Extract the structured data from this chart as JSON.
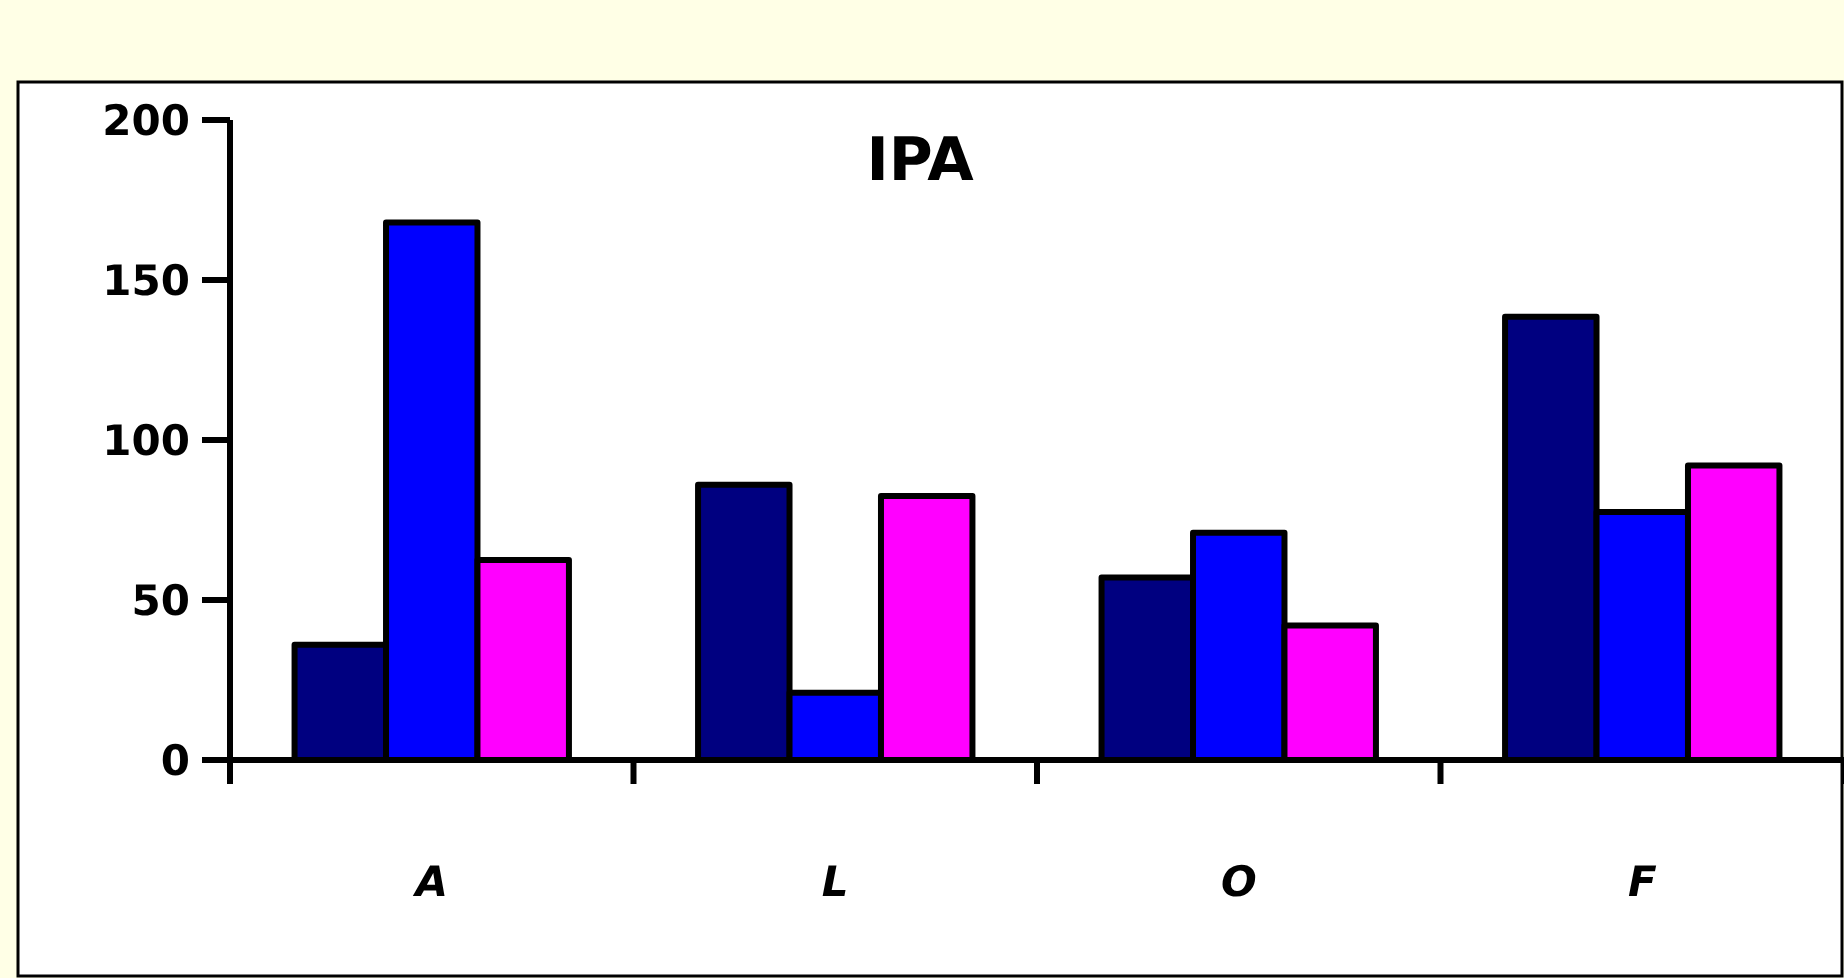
{
  "chart_data": {
    "type": "bar",
    "title": "IPA",
    "categories": [
      "A",
      "L",
      "O",
      "F"
    ],
    "series": [
      {
        "color": "#000080",
        "values": [
          36,
          86,
          57,
          138.5
        ]
      },
      {
        "color": "#0000ff",
        "values": [
          168,
          21,
          71,
          77.5
        ]
      },
      {
        "color": "#ff00ff",
        "values": [
          62.5,
          82.5,
          42,
          92
        ]
      }
    ],
    "ylim": [
      0,
      200
    ],
    "yticks": [
      0,
      50,
      100,
      150,
      200
    ],
    "grid": false
  }
}
